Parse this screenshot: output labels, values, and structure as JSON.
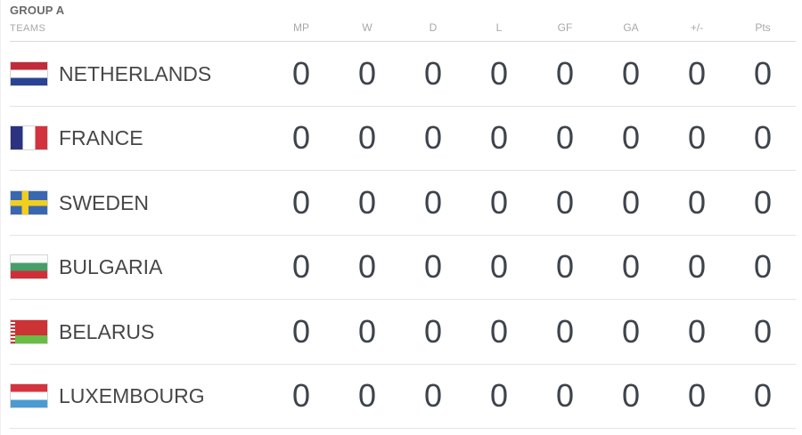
{
  "widget": {
    "group_label": "GROUP A",
    "teams_label": "TEAMS",
    "stat_columns": [
      "MP",
      "W",
      "D",
      "L",
      "GF",
      "GA",
      "+/-",
      "Pts"
    ]
  },
  "standings": [
    {
      "team": "NETHERLANDS",
      "flag": "netherlands",
      "stats": [
        "0",
        "0",
        "0",
        "0",
        "0",
        "0",
        "0",
        "0"
      ]
    },
    {
      "team": "FRANCE",
      "flag": "france",
      "stats": [
        "0",
        "0",
        "0",
        "0",
        "0",
        "0",
        "0",
        "0"
      ]
    },
    {
      "team": "SWEDEN",
      "flag": "sweden",
      "stats": [
        "0",
        "0",
        "0",
        "0",
        "0",
        "0",
        "0",
        "0"
      ]
    },
    {
      "team": "BULGARIA",
      "flag": "bulgaria",
      "stats": [
        "0",
        "0",
        "0",
        "0",
        "0",
        "0",
        "0",
        "0"
      ]
    },
    {
      "team": "BELARUS",
      "flag": "belarus",
      "stats": [
        "0",
        "0",
        "0",
        "0",
        "0",
        "0",
        "0",
        "0"
      ]
    },
    {
      "team": "LUXEMBOURG",
      "flag": "luxembourg",
      "stats": [
        "0",
        "0",
        "0",
        "0",
        "0",
        "0",
        "0",
        "0"
      ]
    }
  ],
  "colors": {
    "group_title_text": "#6a6a6a",
    "column_header_text": "#a8a8a8",
    "team_text": "#474747",
    "stat_text": "#3e444c",
    "divider": "#e3e3e3"
  }
}
